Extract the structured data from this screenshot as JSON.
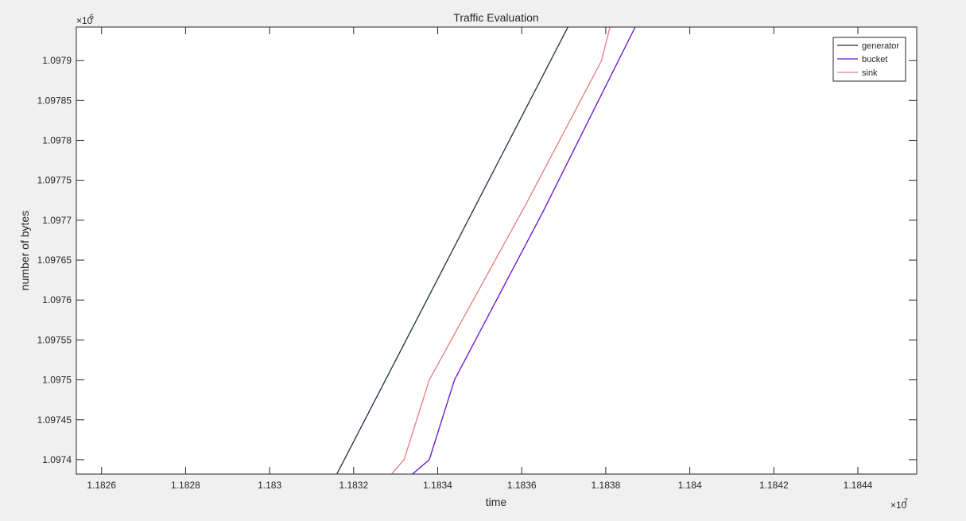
{
  "figure": {
    "background": "#f0f0f0",
    "axes_background": "#ffffff"
  },
  "chart_data": {
    "type": "line",
    "title": "Traffic Evaluation",
    "xlabel": "time",
    "ylabel": "number of bytes",
    "x_multiplier_label": "×10",
    "x_multiplier_exp": "7",
    "y_multiplier_label": "×10",
    "y_multiplier_exp": "6",
    "xlim": [
      1.18254,
      1.18454
    ],
    "ylim": [
      1.097382,
      1.097942
    ],
    "xticks": [
      1.1826,
      1.1828,
      1.183,
      1.1832,
      1.1834,
      1.1836,
      1.1838,
      1.184,
      1.1842,
      1.1844
    ],
    "xtick_labels": [
      "1.1826",
      "1.1828",
      "1.183",
      "1.1832",
      "1.1834",
      "1.1836",
      "1.1838",
      "1.184",
      "1.1842",
      "1.1844"
    ],
    "yticks": [
      1.0974,
      1.09745,
      1.0975,
      1.09755,
      1.0976,
      1.09765,
      1.0977,
      1.09775,
      1.0978,
      1.09785,
      1.0979
    ],
    "ytick_labels": [
      "1.0974",
      "1.09745",
      "1.0975",
      "1.09755",
      "1.0976",
      "1.09765",
      "1.0977",
      "1.09775",
      "1.0978",
      "1.09785",
      "1.0979"
    ],
    "grid": false,
    "legend_position": "top-right",
    "series": [
      {
        "name": "generator",
        "color": "#1f2d3d",
        "x": [
          1.18316,
          1.18371
        ],
        "y": [
          1.097382,
          1.097942
        ]
      },
      {
        "name": "bucket",
        "color": "#6a0dcc",
        "x": [
          1.18334,
          1.18338,
          1.18344,
          1.18365,
          1.18387
        ],
        "y": [
          1.097382,
          1.0974,
          1.0975,
          1.09771,
          1.097942
        ]
      },
      {
        "name": "sink",
        "color": "#e87a7a",
        "x": [
          1.18329,
          1.18332,
          1.18338,
          1.18361,
          1.18379,
          1.18381
        ],
        "y": [
          1.097382,
          1.0974,
          1.0975,
          1.09772,
          1.0979,
          1.097942
        ]
      }
    ]
  }
}
